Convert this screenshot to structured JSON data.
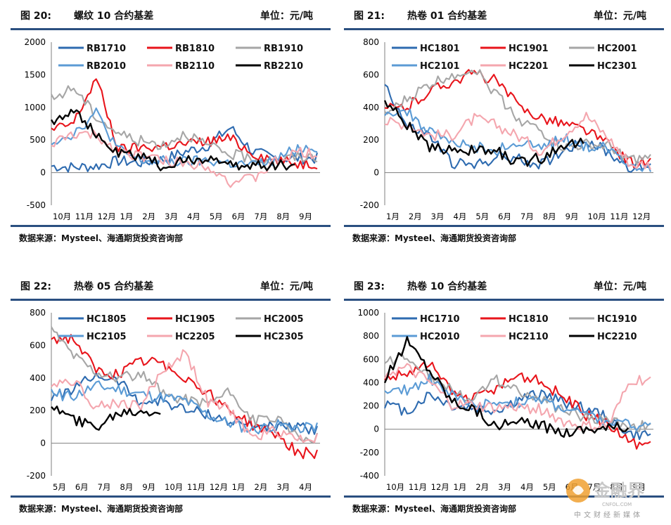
{
  "panels": [
    {
      "id": "p1",
      "fig": "图 20:",
      "title": "螺纹 10 合约基差",
      "unit": "单位：元/吨",
      "source": "数据来源：Mysteel、海通期货投资咨询部"
    },
    {
      "id": "p2",
      "fig": "图 21:",
      "title": "热卷 01 合约基差",
      "unit": "单位：元/吨",
      "source": "数据来源：Mysteel、海通期货投资咨询部"
    },
    {
      "id": "p3",
      "fig": "图 22:",
      "title": "热卷 05 合约基差",
      "unit": "单位：元/吨",
      "source": "数据来源：Mysteel、海通期货投资咨询部"
    },
    {
      "id": "p4",
      "fig": "图 23:",
      "title": "热卷 10 合约基差",
      "unit": "单位：元/吨",
      "source": "数据来源：Mysteel、海通期货投资咨询部"
    }
  ],
  "watermark": {
    "text": "金融界",
    "sub": "中文财经新媒体",
    "domain": "CNFOL.COM"
  },
  "chart_data": [
    {
      "type": "line",
      "title": "螺纹 10 合约基差",
      "ylim": [
        -500,
        2000
      ],
      "yticks": [
        2000,
        1500,
        1000,
        500,
        0,
        -500
      ],
      "categories": [
        "10月",
        "11月",
        "12月",
        "1月",
        "2月",
        "3月",
        "4月",
        "5月",
        "6月",
        "7月",
        "8月",
        "9月"
      ],
      "grid": false,
      "legend_position": "top",
      "series": [
        {
          "name": "RB1710",
          "color": "#2e6bb0",
          "values": [
            100,
            80,
            100,
            180,
            150,
            200,
            320,
            420,
            690,
            320,
            220,
            220
          ]
        },
        {
          "name": "RB1810",
          "color": "#e8141b",
          "values": [
            640,
            760,
            1450,
            350,
            380,
            410,
            440,
            480,
            520,
            300,
            190,
            140
          ]
        },
        {
          "name": "RB1910",
          "color": "#a6a6a6",
          "values": [
            1120,
            1310,
            860,
            600,
            480,
            430,
            610,
            400,
            280,
            210,
            190,
            240
          ]
        },
        {
          "name": "RB2010",
          "color": "#5b9bd5",
          "values": [
            480,
            600,
            920,
            350,
            180,
            170,
            160,
            180,
            140,
            110,
            190,
            380
          ]
        },
        {
          "name": "RB2110",
          "color": "#f4a6ae",
          "values": [
            430,
            590,
            560,
            330,
            260,
            180,
            140,
            120,
            -150,
            -100,
            160,
            300
          ]
        },
        {
          "name": "RB2210",
          "color": "#000000",
          "values": [
            780,
            990,
            560,
            280,
            260,
            90,
            170,
            240,
            90,
            120,
            120,
            null
          ]
        }
      ]
    },
    {
      "type": "line",
      "title": "热卷 01 合约基差",
      "ylim": [
        -200,
        800
      ],
      "yticks": [
        800,
        600,
        400,
        200,
        0,
        -200
      ],
      "categories": [
        "1月",
        "2月",
        "3月",
        "4月",
        "5月",
        "6月",
        "7月",
        "8月",
        "9月",
        "10月",
        "11月",
        "12月"
      ],
      "grid": false,
      "legend_position": "top",
      "series": [
        {
          "name": "HC1801",
          "color": "#2e6bb0",
          "values": [
            550,
            280,
            230,
            60,
            40,
            100,
            80,
            50,
            140,
            200,
            120,
            30
          ]
        },
        {
          "name": "HC1901",
          "color": "#e8141b",
          "values": [
            390,
            400,
            500,
            560,
            610,
            560,
            400,
            340,
            300,
            260,
            170,
            60
          ]
        },
        {
          "name": "HC2001",
          "color": "#a6a6a6",
          "values": [
            350,
            450,
            540,
            600,
            640,
            480,
            330,
            250,
            150,
            170,
            160,
            80
          ]
        },
        {
          "name": "HC2101",
          "color": "#5b9bd5",
          "values": [
            380,
            370,
            250,
            180,
            160,
            140,
            180,
            150,
            210,
            160,
            150,
            40
          ]
        },
        {
          "name": "HC2201",
          "color": "#f4a6ae",
          "values": [
            310,
            300,
            230,
            230,
            330,
            290,
            220,
            130,
            240,
            350,
            210,
            50
          ]
        },
        {
          "name": "HC2301",
          "color": "#000000",
          "values": [
            440,
            300,
            140,
            150,
            130,
            130,
            60,
            90,
            180,
            null,
            null,
            null
          ]
        }
      ]
    },
    {
      "type": "line",
      "title": "热卷 05 合约基差",
      "ylim": [
        -200,
        800
      ],
      "yticks": [
        800,
        600,
        400,
        200,
        0,
        -200
      ],
      "categories": [
        "5月",
        "6月",
        "7月",
        "8月",
        "9月",
        "10月",
        "11月",
        "12月",
        "1月",
        "2月",
        "3月",
        "4月"
      ],
      "grid": false,
      "legend_position": "top",
      "series": [
        {
          "name": "HC1805",
          "color": "#2e6bb0",
          "values": [
            280,
            330,
            420,
            380,
            250,
            260,
            200,
            180,
            130,
            110,
            100,
            90
          ]
        },
        {
          "name": "HC1905",
          "color": "#e8141b",
          "values": [
            640,
            640,
            440,
            420,
            500,
            490,
            400,
            310,
            200,
            110,
            60,
            -60
          ]
        },
        {
          "name": "HC2005",
          "color": "#a6a6a6",
          "values": [
            700,
            540,
            440,
            400,
            420,
            300,
            270,
            250,
            310,
            140,
            150,
            40
          ]
        },
        {
          "name": "HC2105",
          "color": "#5b9bd5",
          "values": [
            300,
            290,
            350,
            330,
            300,
            280,
            260,
            170,
            120,
            80,
            110,
            100
          ]
        },
        {
          "name": "HC2205",
          "color": "#f4a6ae",
          "values": [
            370,
            390,
            220,
            250,
            230,
            450,
            560,
            250,
            200,
            30,
            80,
            30
          ]
        },
        {
          "name": "HC2305",
          "color": "#000000",
          "values": [
            230,
            140,
            100,
            190,
            200,
            null,
            null,
            null,
            null,
            null,
            null,
            null
          ]
        }
      ]
    },
    {
      "type": "line",
      "title": "热卷 10 合约基差",
      "ylim": [
        -400,
        1000
      ],
      "yticks": [
        1000,
        800,
        600,
        400,
        200,
        0,
        -200,
        -400
      ],
      "categories": [
        "10月",
        "11月",
        "12月",
        "1月",
        "2月",
        "3月",
        "4月",
        "5月",
        "6月",
        "7月",
        "8月",
        "9月"
      ],
      "grid": false,
      "legend_position": "top",
      "series": [
        {
          "name": "HC1710",
          "color": "#2e6bb0",
          "values": [
            220,
            150,
            300,
            200,
            180,
            160,
            250,
            310,
            230,
            180,
            90,
            -50
          ]
        },
        {
          "name": "HC1810",
          "color": "#e8141b",
          "values": [
            440,
            480,
            560,
            310,
            260,
            350,
            470,
            400,
            280,
            120,
            40,
            -120
          ]
        },
        {
          "name": "HC1910",
          "color": "#a6a6a6",
          "values": [
            560,
            640,
            460,
            330,
            270,
            420,
            340,
            240,
            170,
            100,
            80,
            30
          ]
        },
        {
          "name": "HC2010",
          "color": "#5b9bd5",
          "values": [
            300,
            340,
            440,
            300,
            180,
            240,
            230,
            250,
            180,
            120,
            60,
            30
          ]
        },
        {
          "name": "HC2110",
          "color": "#f4a6ae",
          "values": [
            480,
            520,
            400,
            210,
            200,
            180,
            190,
            170,
            60,
            20,
            30,
            420
          ]
        },
        {
          "name": "HC2210",
          "color": "#000000",
          "values": [
            420,
            760,
            520,
            250,
            180,
            20,
            60,
            30,
            -20,
            10,
            20,
            null
          ]
        }
      ]
    }
  ]
}
